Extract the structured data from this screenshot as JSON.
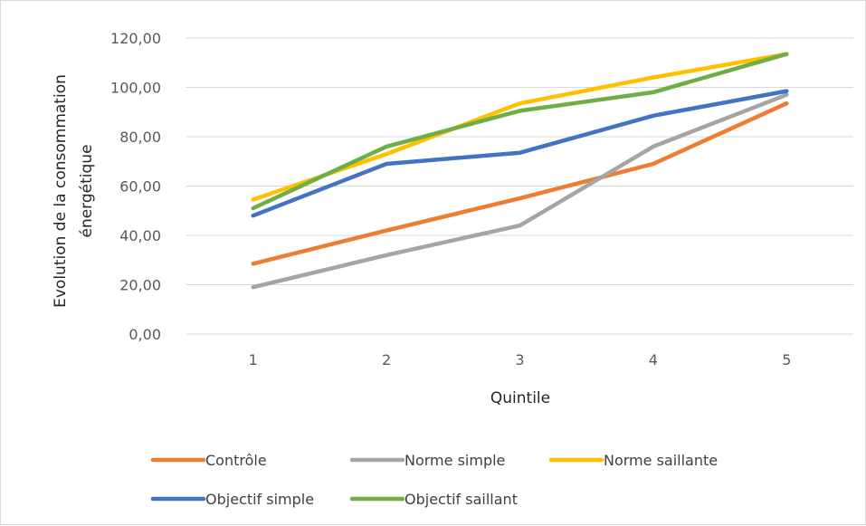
{
  "chart_data": {
    "type": "line",
    "title": "",
    "xlabel": "Quintile",
    "ylabel_lines": [
      "Evolution de la consommation",
      "énergétique"
    ],
    "categories": [
      "1",
      "2",
      "3",
      "4",
      "5"
    ],
    "ylim": [
      0,
      120
    ],
    "yticks": [
      "0,00",
      "20,00",
      "40,00",
      "60,00",
      "80,00",
      "100,00",
      "120,00"
    ],
    "grid": true,
    "legend_position": "bottom",
    "series": [
      {
        "name": "Contrôle",
        "color": "#ED7D31",
        "values": [
          28.5,
          42.0,
          55.0,
          69.0,
          93.5
        ]
      },
      {
        "name": "Norme simple",
        "color": "#A5A5A5",
        "values": [
          19.0,
          32.0,
          44.0,
          76.0,
          97.0
        ]
      },
      {
        "name": "Norme saillante",
        "color": "#FFC000",
        "values": [
          54.5,
          73.0,
          93.5,
          104.0,
          113.5
        ]
      },
      {
        "name": "Objectif simple",
        "color": "#4472C4",
        "values": [
          48.0,
          69.0,
          73.5,
          88.5,
          98.5
        ]
      },
      {
        "name": "Objectif saillant",
        "color": "#70AD47",
        "values": [
          51.0,
          76.0,
          90.5,
          98.0,
          113.5
        ]
      }
    ]
  }
}
